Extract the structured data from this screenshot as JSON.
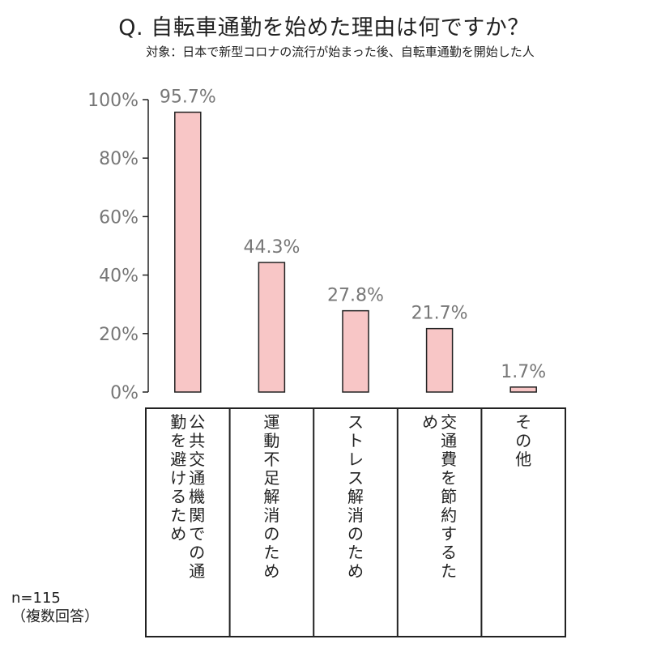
{
  "page": {
    "title": "Q. 自転車通勤を始めた理由は何ですか？",
    "subtitle": "対象：日本で新型コロナの流行が始まった後、自転車通勤を開始した人",
    "sample_size": "n=115",
    "note": "（複数回答）"
  },
  "chart_data": {
    "type": "bar",
    "title": "Q. 自転車通勤を始めた理由は何ですか？",
    "subtitle": "対象：日本で新型コロナの流行が始まった後、自転車通勤を開始した人",
    "categories": [
      "公共交通機関での通勤を避けるため",
      "運動不足解消のため",
      "ストレス解消のため",
      "交通費を節約するため",
      "その他"
    ],
    "values": [
      95.7,
      44.3,
      27.8,
      21.7,
      1.7
    ],
    "value_labels": [
      "95.7%",
      "44.3%",
      "27.8%",
      "21.7%",
      "1.7%"
    ],
    "y_ticks": [
      "0%",
      "20%",
      "40%",
      "60%",
      "80%",
      "100%"
    ],
    "ylim": [
      0,
      100
    ],
    "ylabel": "",
    "xlabel": "",
    "grid": false,
    "legend": "none",
    "colors": {
      "bar_fill": "#f8c6c6",
      "bar_stroke": "#222222",
      "tick_text": "#777777"
    }
  }
}
